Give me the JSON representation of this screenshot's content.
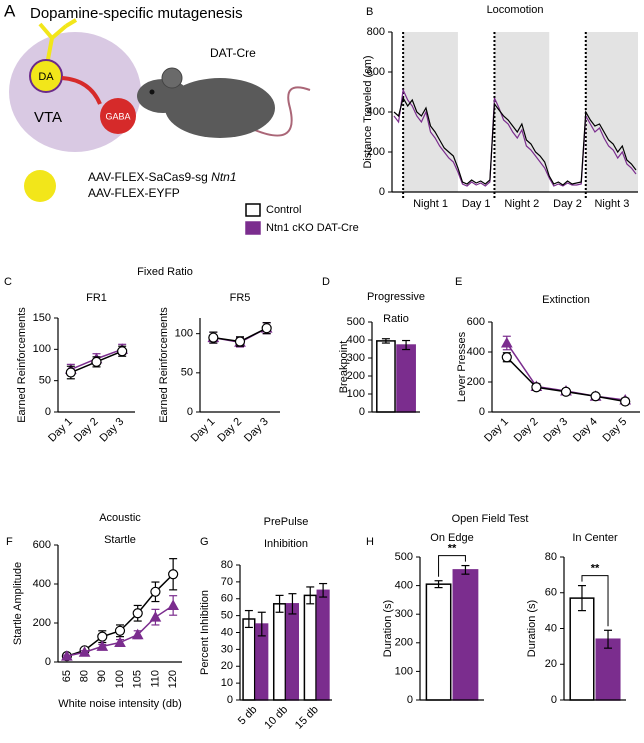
{
  "schematic": {
    "panel": "A",
    "title": "Dopamine-specific mutagenesis",
    "da": "DA",
    "vta": "VTA",
    "gaba": "GABA",
    "strain": "DAT-Cre",
    "vector_1": "AAV-FLEX-SaCas9-sg",
    "vector_1_gene": "Ntn1",
    "vector_2": "AAV-FLEX-EYFP"
  },
  "legend": [
    {
      "name": "Control",
      "color": "#000000",
      "fill": "#ffffff"
    },
    {
      "name": "Ntn1 cKO DAT-Cre",
      "color": "#7b2d8e",
      "fill": "#7b2d8e"
    }
  ],
  "groups": [
    {
      "panel": "C",
      "title": "Fixed Ratio"
    },
    {
      "panel": "H",
      "title": "Open Field Test"
    }
  ],
  "chart_data": [
    {
      "type": "line",
      "panel": "B",
      "title": "Locomotion",
      "ylabel": "Distance Traveled (cm)",
      "ylim": [
        0,
        800
      ],
      "yticks": [
        0,
        200,
        400,
        600,
        800
      ],
      "periods": [
        "Night 1",
        "Day 1",
        "Night 2",
        "Day 2",
        "Night 3"
      ],
      "series": [
        {
          "color": "#7b2d8e",
          "values": [
            380,
            350,
            510,
            460,
            430,
            380,
            350,
            400,
            300,
            270,
            230,
            200,
            170,
            150,
            100,
            40,
            30,
            50,
            35,
            45,
            30,
            50,
            470,
            420,
            360,
            340,
            300,
            270,
            310,
            230,
            210,
            180,
            150,
            120,
            70,
            30,
            40,
            30,
            45,
            35,
            35,
            40,
            380,
            340,
            300,
            320,
            270,
            230,
            210,
            170,
            200,
            140,
            120,
            90
          ]
        },
        {
          "color": "#000000",
          "values": [
            400,
            380,
            470,
            430,
            460,
            400,
            380,
            420,
            330,
            300,
            260,
            220,
            200,
            180,
            120,
            50,
            40,
            60,
            45,
            55,
            40,
            60,
            440,
            410,
            380,
            360,
            330,
            300,
            340,
            260,
            240,
            200,
            180,
            150,
            80,
            40,
            50,
            35,
            55,
            40,
            45,
            50,
            400,
            360,
            330,
            340,
            300,
            260,
            240,
            200,
            230,
            160,
            140,
            110
          ]
        }
      ]
    },
    {
      "type": "line",
      "title": "FR1",
      "ylabel": "Earned Reinforcements",
      "categories": [
        "Day 1",
        "Day 2",
        "Day 3"
      ],
      "ylim": [
        0,
        150
      ],
      "yticks": [
        0,
        50,
        100,
        150
      ],
      "series": [
        {
          "color": "#7b2d8e",
          "fill": "#7b2d8e",
          "marker": "triangle",
          "values": [
            68,
            85,
            100
          ],
          "errors": [
            8,
            8,
            8
          ]
        },
        {
          "color": "#000000",
          "fill": "#ffffff",
          "marker": "circle",
          "values": [
            63,
            80,
            97
          ],
          "errors": [
            10,
            8,
            8
          ]
        }
      ]
    },
    {
      "type": "line",
      "title": "FR5",
      "ylabel": "Earned Reinforcements",
      "categories": [
        "Day 1",
        "Day 2",
        "Day 3"
      ],
      "ylim": [
        0,
        120
      ],
      "yticks": [
        0,
        50,
        100
      ],
      "series": [
        {
          "color": "#7b2d8e",
          "fill": "#7b2d8e",
          "marker": "triangle",
          "values": [
            95,
            89,
            107
          ],
          "errors": [
            7,
            6,
            7
          ]
        },
        {
          "color": "#000000",
          "fill": "#ffffff",
          "marker": "circle",
          "values": [
            95,
            90,
            107
          ],
          "errors": [
            7,
            6,
            7
          ]
        }
      ]
    },
    {
      "type": "bar",
      "panel": "D",
      "title": [
        "Progressive",
        "Ratio"
      ],
      "ylabel": "Breakpoint",
      "ylim": [
        0,
        500
      ],
      "yticks": [
        0,
        100,
        200,
        300,
        400,
        500
      ],
      "series": [
        {
          "color": "#000000",
          "fill": "#ffffff",
          "values": [
            395
          ],
          "errors": [
            12
          ]
        },
        {
          "color": "#7b2d8e",
          "fill": "#7b2d8e",
          "values": [
            372
          ],
          "errors": [
            25
          ]
        }
      ]
    },
    {
      "type": "line",
      "panel": "E",
      "title": "Extinction",
      "ylabel": "Lever Presses",
      "categories": [
        "Day 1",
        "Day 2",
        "Day 3",
        "Day 4",
        "Day 5"
      ],
      "ylim": [
        0,
        600
      ],
      "yticks": [
        0,
        200,
        400,
        600
      ],
      "series": [
        {
          "color": "#7b2d8e",
          "fill": "#7b2d8e",
          "marker": "triangle",
          "values": [
            460,
            170,
            140,
            105,
            80
          ],
          "errors": [
            45,
            20,
            15,
            12,
            12
          ]
        },
        {
          "color": "#000000",
          "fill": "#ffffff",
          "marker": "circle",
          "values": [
            365,
            165,
            135,
            105,
            70
          ],
          "errors": [
            30,
            20,
            15,
            12,
            12
          ]
        }
      ]
    },
    {
      "type": "line",
      "panel": "F",
      "title": [
        "Acoustic",
        "Startle"
      ],
      "ylabel": "Startle Amplitude",
      "xlabel": "White noise intensity (db)",
      "categories": [
        65,
        80,
        90,
        100,
        105,
        110,
        120
      ],
      "ylim": [
        0,
        600
      ],
      "yticks": [
        0,
        200,
        400,
        600
      ],
      "series": [
        {
          "color": "#000000",
          "fill": "#ffffff",
          "marker": "circle",
          "values": [
            30,
            60,
            130,
            160,
            250,
            360,
            450
          ],
          "errors": [
            5,
            10,
            30,
            30,
            40,
            50,
            80
          ]
        },
        {
          "color": "#7b2d8e",
          "fill": "#7b2d8e",
          "marker": "triangle",
          "values": [
            30,
            50,
            80,
            100,
            140,
            230,
            290
          ],
          "errors": [
            5,
            8,
            10,
            15,
            20,
            40,
            50
          ]
        }
      ]
    },
    {
      "type": "bar",
      "panel": "G",
      "title": [
        "PrePulse",
        "Inhibition"
      ],
      "ylabel": "Percent Inhibition",
      "categories": [
        "5 db",
        "10 db",
        "15 db"
      ],
      "ylim": [
        0,
        80
      ],
      "yticks": [
        0,
        10,
        20,
        30,
        40,
        50,
        60,
        70,
        80
      ],
      "series": [
        {
          "color": "#000000",
          "fill": "#ffffff",
          "values": [
            48,
            57,
            62
          ],
          "errors": [
            5,
            5,
            5
          ]
        },
        {
          "color": "#7b2d8e",
          "fill": "#7b2d8e",
          "values": [
            45,
            57,
            65
          ],
          "errors": [
            7,
            6,
            4
          ]
        }
      ]
    },
    {
      "type": "bar",
      "title": "On Edge",
      "ylabel": "Duration (s)",
      "annotation": "**",
      "ylim": [
        0,
        500
      ],
      "yticks": [
        0,
        100,
        200,
        300,
        400,
        500
      ],
      "series": [
        {
          "color": "#000000",
          "fill": "#ffffff",
          "values": [
            405
          ],
          "errors": [
            12
          ]
        },
        {
          "color": "#7b2d8e",
          "fill": "#7b2d8e",
          "values": [
            455
          ],
          "errors": [
            15
          ]
        }
      ]
    },
    {
      "type": "bar",
      "title": "In Center",
      "ylabel": "Duration (s)",
      "annotation": "**",
      "ylim": [
        0,
        80
      ],
      "yticks": [
        0,
        20,
        40,
        60,
        80
      ],
      "series": [
        {
          "color": "#000000",
          "fill": "#ffffff",
          "values": [
            57
          ],
          "errors": [
            7
          ]
        },
        {
          "color": "#7b2d8e",
          "fill": "#7b2d8e",
          "values": [
            34
          ],
          "errors": [
            5
          ]
        }
      ]
    }
  ]
}
